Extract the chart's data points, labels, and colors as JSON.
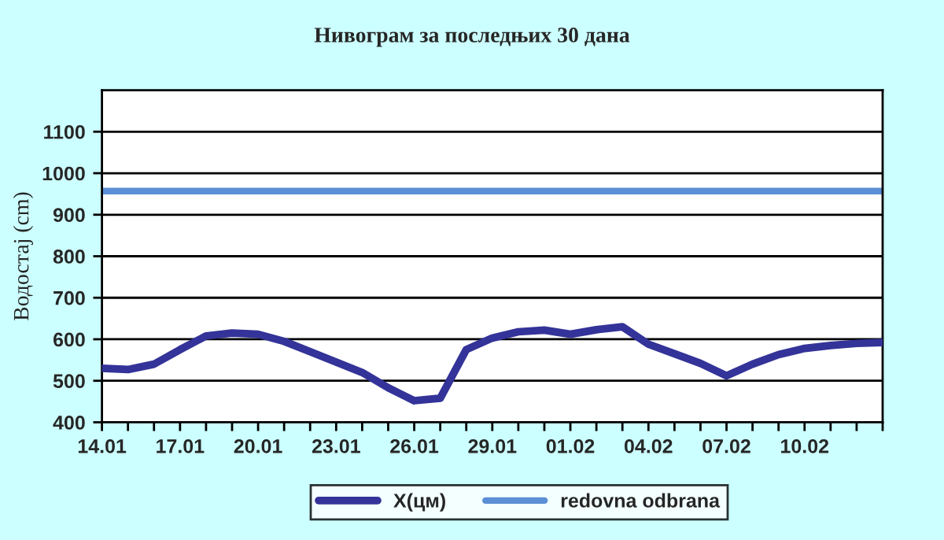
{
  "chart_data": {
    "type": "line",
    "title": "Нивограм за последњих 30 дана",
    "ylabel": "Водостај (cm)",
    "categories": [
      "14.01",
      null,
      null,
      "17.01",
      null,
      null,
      "20.01",
      null,
      null,
      "23.01",
      null,
      null,
      "26.01",
      null,
      null,
      "29.01",
      null,
      null,
      "01.02",
      null,
      null,
      "04.02",
      null,
      null,
      "07.02",
      null,
      null,
      "10.02",
      null,
      null,
      null
    ],
    "series": [
      {
        "name": "X(цм)",
        "color": "#333399",
        "values": [
          530,
          527,
          540,
          575,
          608,
          615,
          612,
          595,
          570,
          545,
          520,
          483,
          452,
          458,
          575,
          603,
          618,
          622,
          612,
          623,
          630,
          588,
          565,
          542,
          512,
          540,
          563,
          578,
          585,
          590,
          592
        ]
      }
    ],
    "ref_lines": [
      {
        "axis": "y",
        "value": 957,
        "label": "redovna odbrana",
        "color": "#5b8fd6"
      }
    ],
    "ylim": [
      400,
      1200
    ],
    "yticks": [
      400,
      500,
      600,
      700,
      800,
      900,
      1000,
      1100
    ],
    "grid": "y",
    "legend": "bottom",
    "marker": "none",
    "line_style": "solid"
  }
}
